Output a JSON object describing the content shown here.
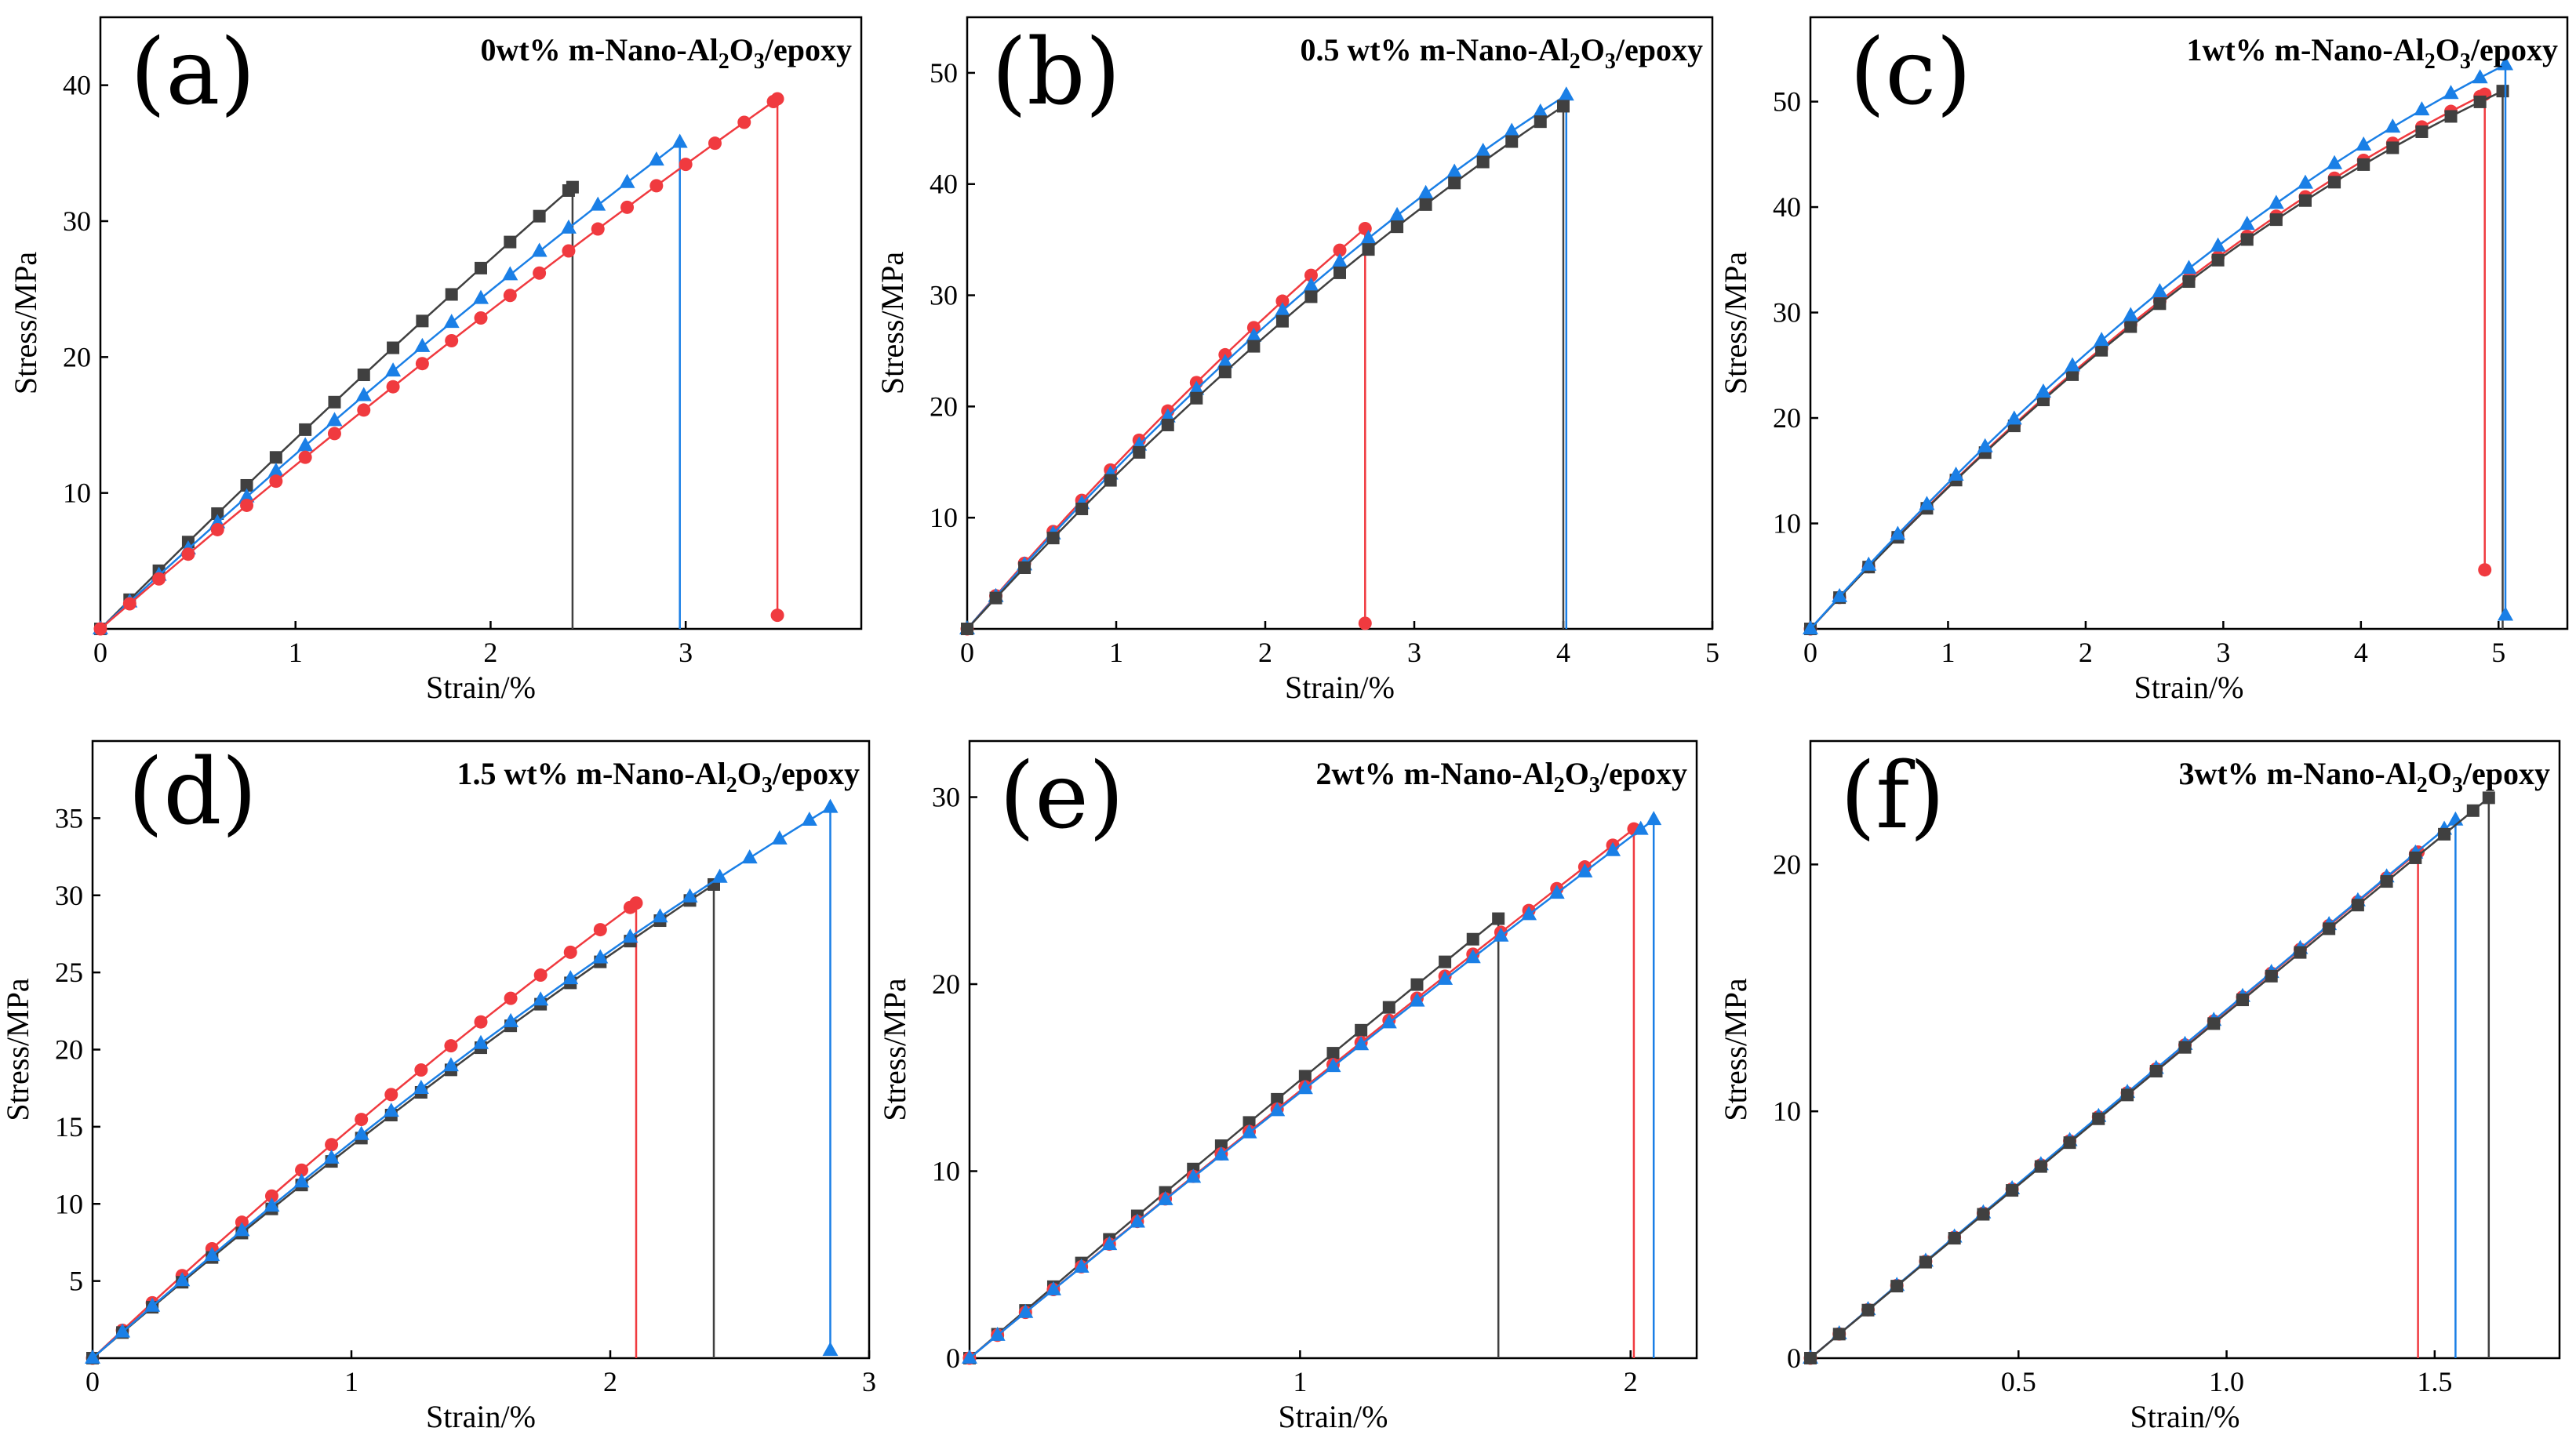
{
  "colors": {
    "black": "#404040",
    "red": "#f03a3f",
    "blue": "#1a7fe6"
  },
  "chart_data": [
    {
      "type": "line",
      "label": "(a)",
      "title_pre": "0wt% m-Nano-Al",
      "title_sub": "2",
      "title_mid": "O",
      "title_sub2": "3",
      "title_post": "/epoxy",
      "xlabel": "Strain/%",
      "ylabel": "Stress/MPa",
      "xlim": [
        0,
        3.9
      ],
      "ylim": [
        0,
        45
      ],
      "xticks": [
        0,
        1,
        2,
        3
      ],
      "yticks": [
        10,
        20,
        30,
        40
      ],
      "series": [
        {
          "name": "sample-black",
          "color": "black",
          "marker": "square",
          "x": [
            0,
            2.42
          ],
          "y": [
            0,
            32.5
          ],
          "curv": 0.07,
          "fracture_x": 2.42,
          "end_y": 0
        },
        {
          "name": "sample-blue",
          "color": "blue",
          "marker": "triangle",
          "x": [
            0,
            2.97
          ],
          "y": [
            0,
            35.8
          ],
          "curv": 0.1,
          "fracture_x": 2.97,
          "end_y": 0
        },
        {
          "name": "sample-red",
          "color": "red",
          "marker": "circle",
          "x": [
            0,
            3.47
          ],
          "y": [
            0,
            39
          ],
          "curv": 0.1,
          "fracture_x": 3.47,
          "end_y": 1
        }
      ]
    },
    {
      "type": "line",
      "label": "(b)",
      "title_pre": "0.5 wt% m-Nano-Al",
      "title_sub": "2",
      "title_mid": "O",
      "title_sub2": "3",
      "title_post": "/epoxy",
      "xlabel": "Strain/%",
      "ylabel": "Stress/MPa",
      "xlim": [
        0,
        5
      ],
      "ylim": [
        0,
        55
      ],
      "xticks": [
        0,
        1,
        2,
        3,
        4,
        5
      ],
      "yticks": [
        10,
        20,
        30,
        40,
        50
      ],
      "series": [
        {
          "name": "sample-red",
          "color": "red",
          "marker": "circle",
          "x": [
            0,
            2.67
          ],
          "y": [
            0,
            36
          ],
          "curv": 0.16,
          "fracture_x": 2.67,
          "end_y": 0.5
        },
        {
          "name": "sample-blue",
          "color": "blue",
          "marker": "triangle",
          "x": [
            0,
            4.02
          ],
          "y": [
            0,
            48
          ],
          "curv": 0.28,
          "fracture_x": 4.02,
          "end_y": 0
        },
        {
          "name": "sample-black",
          "color": "black",
          "marker": "square",
          "x": [
            0,
            4
          ],
          "y": [
            0,
            47
          ],
          "curv": 0.24,
          "fracture_x": 4,
          "end_y": 0
        }
      ]
    },
    {
      "type": "line",
      "label": "(c)",
      "title_pre": "1wt% m-Nano-Al",
      "title_sub": "2",
      "title_mid": "O",
      "title_sub2": "3",
      "title_post": "/epoxy",
      "xlabel": "Strain/%",
      "ylabel": "Stress/MPa",
      "xlim": [
        0,
        5.5
      ],
      "ylim": [
        0,
        58
      ],
      "xticks": [
        0,
        1,
        2,
        3,
        4,
        5
      ],
      "yticks": [
        10,
        20,
        30,
        40,
        50
      ],
      "series": [
        {
          "name": "sample-red",
          "color": "red",
          "marker": "circle",
          "x": [
            0,
            4.9
          ],
          "y": [
            0,
            50.7
          ],
          "curv": 0.38,
          "fracture_x": 4.9,
          "end_y": 5.6
        },
        {
          "name": "sample-black",
          "color": "black",
          "marker": "square",
          "x": [
            0,
            5.03
          ],
          "y": [
            0,
            51
          ],
          "curv": 0.4,
          "fracture_x": 5.03,
          "end_y": 0
        },
        {
          "name": "sample-blue",
          "color": "blue",
          "marker": "triangle",
          "x": [
            0,
            5.05
          ],
          "y": [
            0,
            53.5
          ],
          "curv": 0.38,
          "fracture_x": 5.05,
          "end_y": 1.3
        }
      ]
    },
    {
      "type": "line",
      "label": "(d)",
      "title_pre": "1.5 wt% m-Nano-Al",
      "title_sub": "2",
      "title_mid": "O",
      "title_sub2": "3",
      "title_post": "/epoxy",
      "xlabel": "Strain/%",
      "ylabel": "Stress/MPa",
      "xlim": [
        0,
        3
      ],
      "ylim": [
        0,
        40
      ],
      "xticks": [
        0,
        1,
        2,
        3
      ],
      "yticks": [
        5,
        10,
        15,
        20,
        25,
        30,
        35
      ],
      "series": [
        {
          "name": "sample-red",
          "color": "red",
          "marker": "circle",
          "x": [
            0,
            2.1
          ],
          "y": [
            0,
            29.5
          ],
          "curv": 0.12,
          "fracture_x": 2.1,
          "end_y": 0
        },
        {
          "name": "sample-black",
          "color": "black",
          "marker": "square",
          "x": [
            0,
            2.4
          ],
          "y": [
            0,
            30.7
          ],
          "curv": 0.13,
          "fracture_x": 2.4,
          "end_y": 0
        },
        {
          "name": "sample-blue",
          "color": "blue",
          "marker": "triangle",
          "x": [
            0,
            2.85
          ],
          "y": [
            0,
            35.7
          ],
          "curv": 0.18,
          "fracture_x": 2.85,
          "end_y": 0.5
        }
      ]
    },
    {
      "type": "line",
      "label": "(e)",
      "title_pre": "2wt% m-Nano-Al",
      "title_sub": "2",
      "title_mid": "O",
      "title_sub2": "3",
      "title_post": "/epoxy",
      "xlabel": "Strain/%",
      "ylabel": "Stress/MPa",
      "xlim": [
        0,
        2.2
      ],
      "ylim": [
        0,
        33
      ],
      "xticks": [
        1,
        2
      ],
      "yticks": [
        0,
        10,
        20,
        30
      ],
      "series": [
        {
          "name": "sample-black",
          "color": "black",
          "marker": "square",
          "x": [
            0,
            1.6
          ],
          "y": [
            0,
            23.5
          ],
          "curv": 0.03,
          "fracture_x": 1.6,
          "end_y": 0
        },
        {
          "name": "sample-red",
          "color": "red",
          "marker": "circle",
          "x": [
            0,
            2.01
          ],
          "y": [
            0,
            28.3
          ],
          "curv": 0.03,
          "fracture_x": 2.01,
          "end_y": 0
        },
        {
          "name": "sample-blue",
          "color": "blue",
          "marker": "triangle",
          "x": [
            0,
            2.07
          ],
          "y": [
            0,
            28.8
          ],
          "curv": 0.04,
          "fracture_x": 2.07,
          "end_y": 0
        }
      ]
    },
    {
      "type": "line",
      "label": "(f)",
      "title_pre": "3wt% m-Nano-Al",
      "title_sub": "2",
      "title_mid": "O",
      "title_sub2": "3",
      "title_post": "/epoxy",
      "xlabel": "Strain/%",
      "ylabel": "Stress/MPa",
      "xlim": [
        0,
        1.8
      ],
      "ylim": [
        0,
        25
      ],
      "xticks": [
        0.5,
        1.0,
        1.5
      ],
      "xtick_labels": [
        "0.5",
        "1.0",
        "1.5"
      ],
      "yticks": [
        0,
        10,
        20
      ],
      "series": [
        {
          "name": "sample-red",
          "color": "red",
          "marker": "circle",
          "x": [
            0,
            1.46
          ],
          "y": [
            0,
            20.5
          ],
          "curv": 0.01,
          "fracture_x": 1.46,
          "end_y": 0
        },
        {
          "name": "sample-blue",
          "color": "blue",
          "marker": "triangle",
          "x": [
            0,
            1.55
          ],
          "y": [
            0,
            21.8
          ],
          "curv": 0.01,
          "fracture_x": 1.55,
          "end_y": 0
        },
        {
          "name": "sample-black",
          "color": "black",
          "marker": "square",
          "x": [
            0,
            1.63
          ],
          "y": [
            0,
            22.7
          ],
          "curv": 0.01,
          "fracture_x": 1.63,
          "end_y": 0
        }
      ]
    }
  ]
}
